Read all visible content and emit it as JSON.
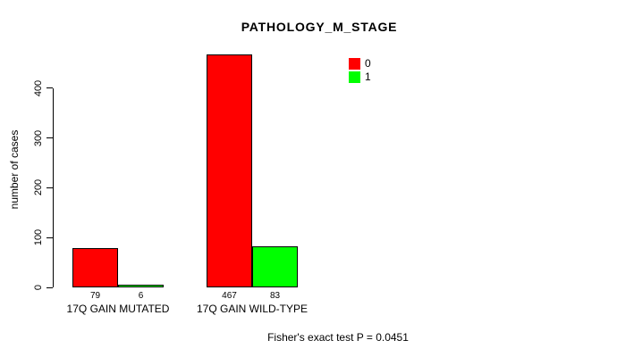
{
  "chart_data": {
    "type": "bar",
    "title": "PATHOLOGY_M_STAGE",
    "ylabel": "number of cases",
    "xlabel": "",
    "categories": [
      "17Q GAIN MUTATED",
      "17Q GAIN WILD-TYPE"
    ],
    "series": [
      {
        "name": "0",
        "color": "#ff0000",
        "values": [
          79,
          467
        ]
      },
      {
        "name": "1",
        "color": "#00ff00",
        "values": [
          6,
          83
        ]
      }
    ],
    "yticks": [
      0,
      100,
      200,
      300,
      400
    ],
    "ylim": [
      0,
      470
    ],
    "grid": false,
    "legend_position": "top-right",
    "annotation": "Fisher's exact test P = 0.0451"
  },
  "colors": {
    "axis": "#000000",
    "background": "#ffffff",
    "series_0": "#ff0000",
    "series_1": "#00ff00"
  }
}
